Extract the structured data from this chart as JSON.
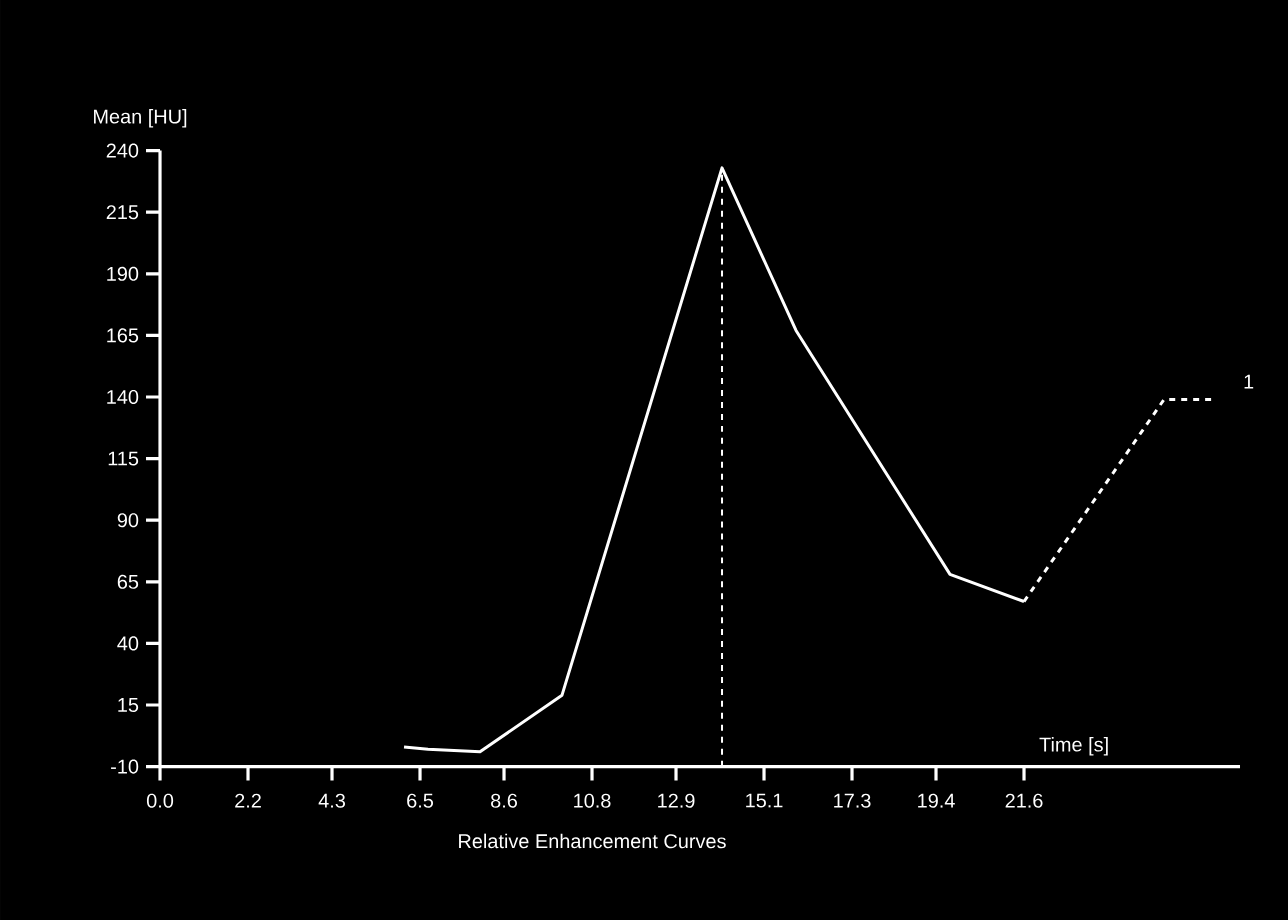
{
  "chart_data": {
    "type": "line",
    "ylabel": "Mean [HU]",
    "xlabel": "Time [s]",
    "annotations": [
      "Relative Enhancement Curves",
      {
        "text": "1",
        "x": 26.4,
        "y": 139
      }
    ],
    "xlim": [
      0,
      27
    ],
    "ylim": [
      -10,
      240
    ],
    "xticks": [
      {
        "value": 0,
        "label": "0.0"
      },
      2.2,
      4.3,
      6.5,
      8.6,
      10.8,
      12.9,
      15.1,
      17.3,
      19.4,
      21.6
    ],
    "yticks": [
      -10,
      15,
      40,
      65,
      90,
      115,
      140,
      165,
      190,
      215,
      240
    ],
    "grid": false,
    "marker": "none",
    "ref_lines": [
      {
        "axis": "x",
        "value": 14.05,
        "line_style": "dashed",
        "color": "#ffffff"
      }
    ],
    "series": [
      {
        "color": "#ffffff",
        "line_style": "solid",
        "x": [
          6.1,
          6.7,
          8.0,
          10.05,
          14.05,
          15.9,
          19.75,
          21.6
        ],
        "values": [
          -2,
          -3,
          -4,
          19,
          233,
          167,
          68,
          57
        ]
      },
      {
        "color": "#ffffff",
        "line_style": "dashed",
        "x": [
          21.6,
          25.1,
          26.4
        ],
        "values": [
          57,
          139,
          139
        ]
      }
    ]
  }
}
